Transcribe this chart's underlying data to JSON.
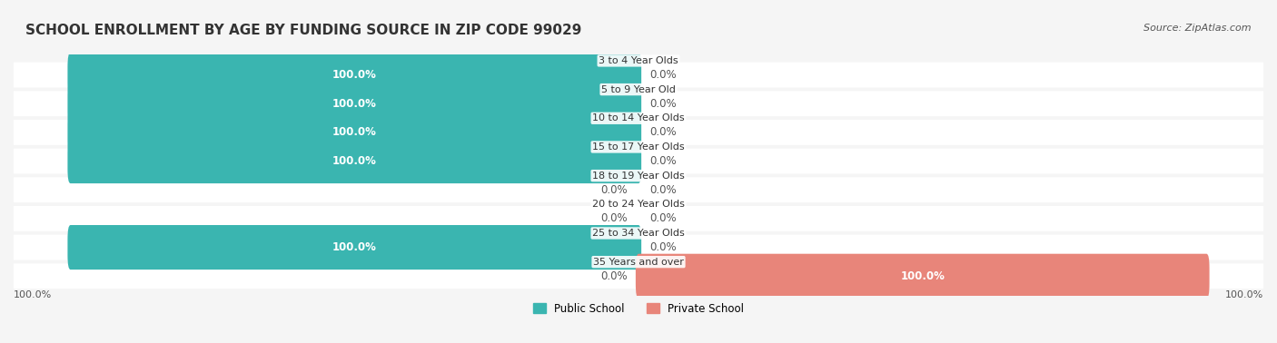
{
  "title": "SCHOOL ENROLLMENT BY AGE BY FUNDING SOURCE IN ZIP CODE 99029",
  "source": "Source: ZipAtlas.com",
  "categories": [
    "3 to 4 Year Olds",
    "5 to 9 Year Old",
    "10 to 14 Year Olds",
    "15 to 17 Year Olds",
    "18 to 19 Year Olds",
    "20 to 24 Year Olds",
    "25 to 34 Year Olds",
    "35 Years and over"
  ],
  "public_values": [
    100.0,
    100.0,
    100.0,
    100.0,
    0.0,
    0.0,
    100.0,
    0.0
  ],
  "private_values": [
    0.0,
    0.0,
    0.0,
    0.0,
    0.0,
    0.0,
    0.0,
    100.0
  ],
  "public_color": "#3ab5b0",
  "private_color": "#e8857a",
  "public_label_color": "#ffffff",
  "private_label_color": "#555555",
  "background_color": "#f5f5f5",
  "bar_background_color": "#e8e8e8",
  "title_fontsize": 11,
  "label_fontsize": 8.5,
  "tick_fontsize": 8,
  "source_fontsize": 8,
  "bar_height": 0.55,
  "xlim": [
    -110,
    110
  ],
  "legend_items": [
    "Public School",
    "Private School"
  ]
}
